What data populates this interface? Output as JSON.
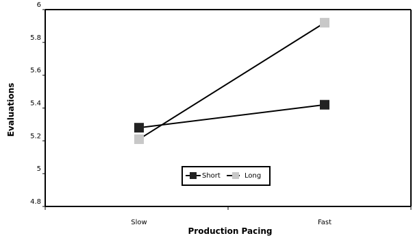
{
  "chart_data": {
    "type": "line",
    "title": "",
    "xlabel": "Production Pacing",
    "ylabel": "Evaluations",
    "categories": [
      "Slow",
      "Fast"
    ],
    "ylim": [
      4.8,
      6.0
    ],
    "yticks": [
      "4.8",
      "5",
      "5.2",
      "5.4",
      "5.6",
      "5.8",
      "6"
    ],
    "grid": false,
    "legend_position": "bottom-center",
    "series": [
      {
        "name": "Short",
        "values": [
          5.28,
          5.42
        ],
        "color": "#222222"
      },
      {
        "name": "Long",
        "values": [
          5.21,
          5.92
        ],
        "color": "#c8c8c8"
      }
    ]
  }
}
